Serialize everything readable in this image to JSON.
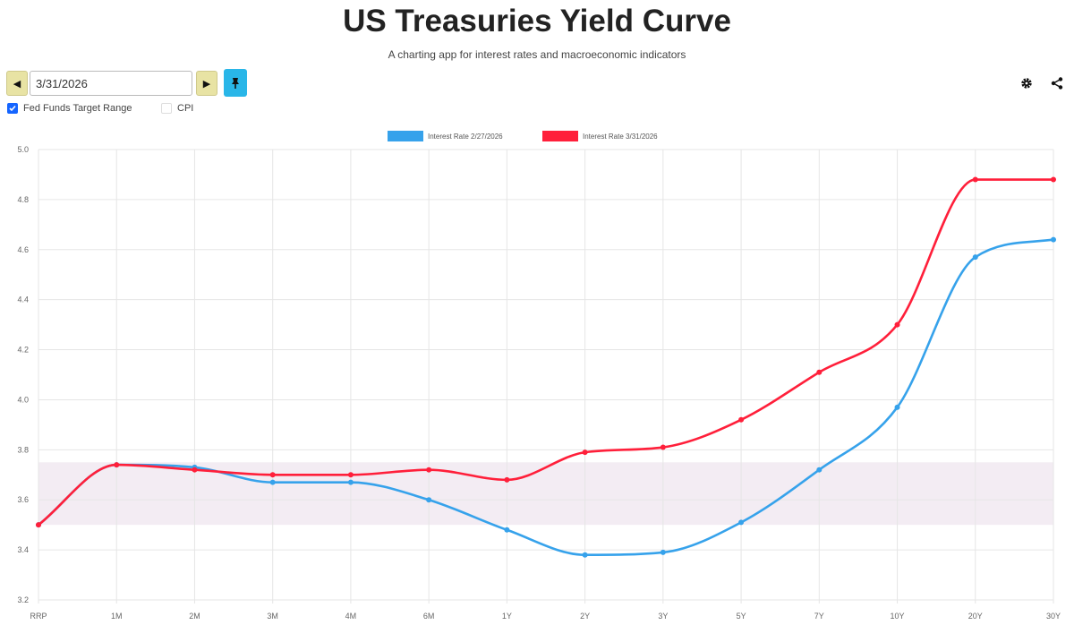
{
  "header": {
    "title": "US Treasuries Yield Curve",
    "subtitle": "A charting app for interest rates and macroeconomic indicators"
  },
  "controls": {
    "date_value": "3/31/2026",
    "prev_icon": "caret-left-icon",
    "next_icon": "caret-right-icon",
    "pin_icon": "pin-icon",
    "settings_icon": "gear-icon",
    "share_icon": "share-icon",
    "options": [
      {
        "label": "Fed Funds Target Range",
        "checked": true
      },
      {
        "label": "CPI",
        "checked": false
      }
    ]
  },
  "chart_data": {
    "type": "line",
    "categories": [
      "RRP",
      "1M",
      "2M",
      "3M",
      "4M",
      "6M",
      "1Y",
      "2Y",
      "3Y",
      "5Y",
      "7Y",
      "10Y",
      "20Y",
      "30Y"
    ],
    "series": [
      {
        "name": "Interest Rate 2/27/2026",
        "color": "#36a2eb",
        "values": [
          3.5,
          3.74,
          3.73,
          3.67,
          3.67,
          3.6,
          3.48,
          3.38,
          3.39,
          3.51,
          3.72,
          3.97,
          4.57,
          4.64
        ]
      },
      {
        "name": "Interest Rate 3/31/2026",
        "color": "#ff1f3a",
        "values": [
          3.5,
          3.74,
          3.72,
          3.7,
          3.7,
          3.72,
          3.68,
          3.79,
          3.81,
          3.92,
          4.11,
          4.3,
          4.88,
          4.88
        ]
      }
    ],
    "band": {
      "label": "Fed Funds Target Range",
      "low": 3.5,
      "high": 3.75,
      "color": "#f3ecf3"
    },
    "ylim": [
      3.2,
      5.0
    ],
    "yticks": [
      "3.2",
      "3.4",
      "3.6",
      "3.8",
      "4.0",
      "4.2",
      "4.4",
      "4.6",
      "4.8",
      "5.0"
    ],
    "grid": true,
    "legend_position": "top-center"
  }
}
